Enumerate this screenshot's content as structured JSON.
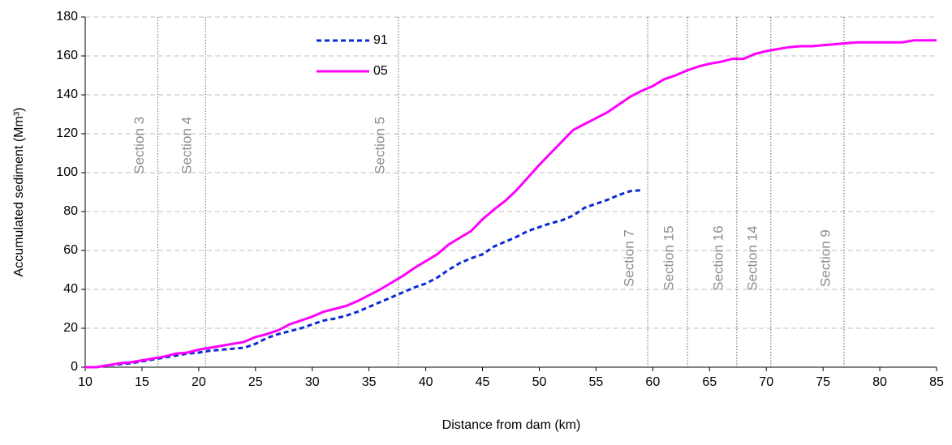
{
  "chart_data": {
    "type": "line",
    "xlabel": "Distance from dam (km)",
    "ylabel": "Accumulated sediment (Mm³)",
    "x": [
      10,
      11,
      12,
      13,
      14,
      15,
      16,
      17,
      18,
      19,
      20,
      21,
      22,
      23,
      24,
      25,
      26,
      27,
      28,
      29,
      30,
      31,
      32,
      33,
      34,
      35,
      36,
      37,
      38,
      39,
      40,
      41,
      42,
      43,
      44,
      45,
      46,
      47,
      48,
      49,
      50,
      51,
      52,
      53,
      54,
      55,
      56,
      57,
      58,
      59,
      60,
      61,
      62,
      63,
      64,
      65,
      66,
      67,
      68,
      69,
      70,
      71,
      72,
      73,
      74,
      75,
      76,
      77,
      78,
      79,
      80,
      81,
      82,
      83,
      84,
      85
    ],
    "series": [
      {
        "name": "91",
        "color": "#0a2ad6",
        "linestyle": "dashed",
        "values": [
          0,
          0,
          1,
          1.5,
          2,
          3,
          4,
          5,
          6,
          7,
          7.5,
          8.5,
          9,
          9.5,
          10,
          12,
          15,
          17,
          18.5,
          20,
          22,
          24,
          25,
          26.5,
          28.5,
          31,
          33.5,
          36,
          38.5,
          41,
          43,
          46,
          50,
          53.5,
          56,
          58,
          62,
          64.5,
          67,
          70,
          72,
          74,
          75.5,
          78,
          82,
          84,
          86,
          88.5,
          90.5,
          91,
          null,
          null,
          null,
          null,
          null,
          null,
          null,
          null,
          null,
          null,
          null,
          null,
          null,
          null,
          null,
          null,
          null,
          null,
          null,
          null,
          null,
          null,
          null,
          null,
          null,
          null
        ]
      },
      {
        "name": "05",
        "color": "#ff00ff",
        "linestyle": "solid",
        "values": [
          0,
          0,
          1,
          2,
          2.5,
          3.5,
          4.5,
          5.5,
          7,
          7.5,
          9,
          10,
          11,
          12,
          13,
          15.5,
          17,
          19,
          22,
          24,
          26,
          28.5,
          30,
          31.5,
          34,
          37,
          40,
          43.5,
          47,
          51,
          54.5,
          58,
          63,
          66.5,
          70,
          76,
          81,
          85.5,
          91,
          97.5,
          104,
          110,
          116,
          122,
          125,
          128,
          131,
          135,
          139,
          142,
          144.5,
          148,
          150,
          152.5,
          154.5,
          156,
          157,
          158.5,
          158.5,
          161,
          162.5,
          163.5,
          164.5,
          165,
          165,
          165.5,
          166,
          166.5,
          167,
          167,
          167,
          167,
          167,
          168,
          168,
          168
        ]
      }
    ],
    "xlim": [
      10,
      85
    ],
    "xticks": [
      10,
      15,
      20,
      25,
      30,
      35,
      40,
      45,
      50,
      55,
      60,
      65,
      70,
      75,
      80,
      85
    ],
    "ylim": [
      0,
      180
    ],
    "yticks": [
      0,
      20,
      40,
      60,
      80,
      100,
      120,
      140,
      160,
      180
    ],
    "grid": true,
    "legend": "upper center",
    "annotations": [
      {
        "text": "Section 3",
        "x": 16.4,
        "label_y": 114
      },
      {
        "text": "Section 4",
        "x": 20.6,
        "label_y": 114
      },
      {
        "text": "Section 5",
        "x": 37.6,
        "label_y": 114
      },
      {
        "text": "Section 7",
        "x": 59.55,
        "label_y": 56
      },
      {
        "text": "Section 15",
        "x": 63.05,
        "label_y": 56
      },
      {
        "text": "Section 16",
        "x": 67.4,
        "label_y": 56
      },
      {
        "text": "Section 14",
        "x": 70.4,
        "label_y": 56
      },
      {
        "text": "Section 9",
        "x": 76.85,
        "label_y": 56
      }
    ]
  }
}
